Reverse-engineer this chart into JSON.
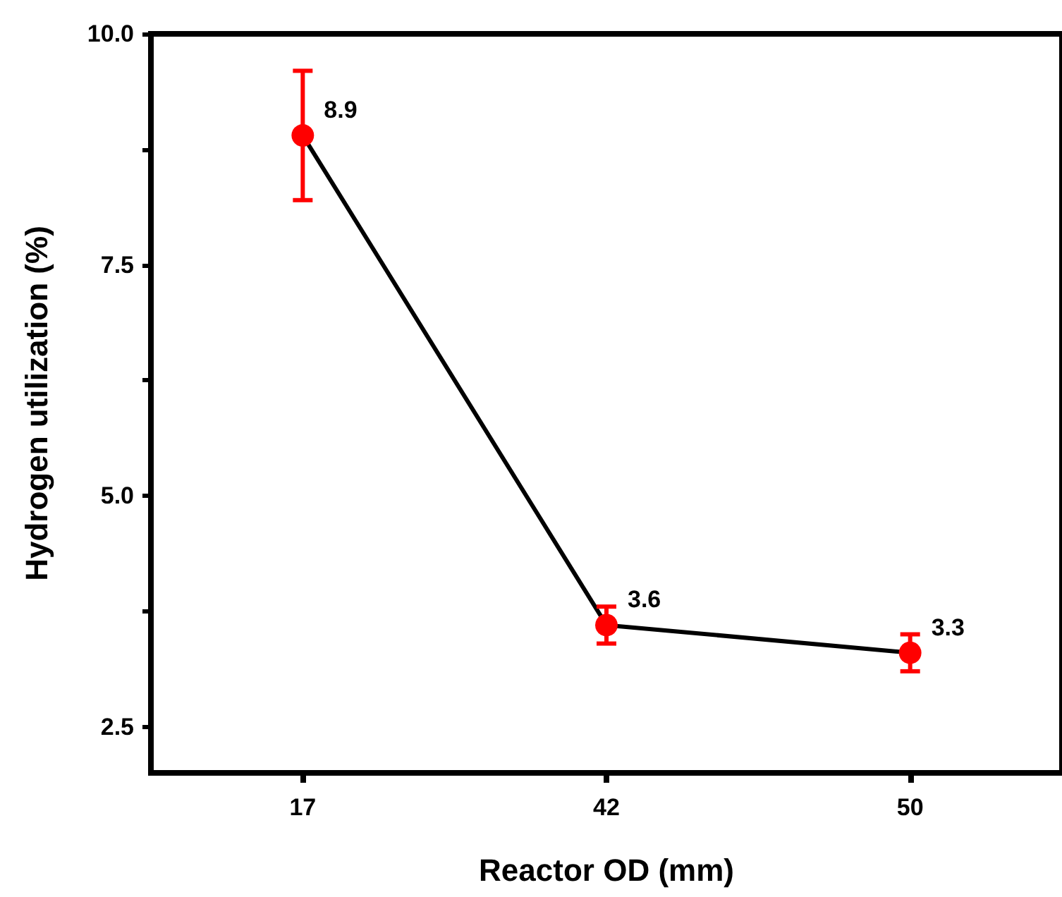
{
  "chart_data": {
    "type": "line",
    "xlabel": "Reactor OD (mm)",
    "ylabel": "Hydrogen utilization (%)",
    "categories": [
      "17",
      "42",
      "50"
    ],
    "series": [
      {
        "color": "#000000",
        "colors": [
          "#ff0000",
          "#ff0000",
          "#ff0000"
        ],
        "values": [
          8.9,
          3.6,
          3.3
        ],
        "errors": [
          0.7,
          0.2,
          0.2
        ]
      }
    ],
    "ylim": [
      2.0,
      10.0
    ],
    "yticks": [
      {
        "value": 2.5,
        "label": "2.5"
      },
      {
        "value": 3.75,
        "label": null
      },
      {
        "value": 5.0,
        "label": "5.0"
      },
      {
        "value": 6.25,
        "label": null
      },
      {
        "value": 7.5,
        "label": "7.5"
      },
      {
        "value": 8.75,
        "label": null
      },
      {
        "value": 10.0,
        "label": "10.0"
      }
    ],
    "marker": "circle",
    "line_style": "solid",
    "data_labels": true,
    "grid": false
  }
}
